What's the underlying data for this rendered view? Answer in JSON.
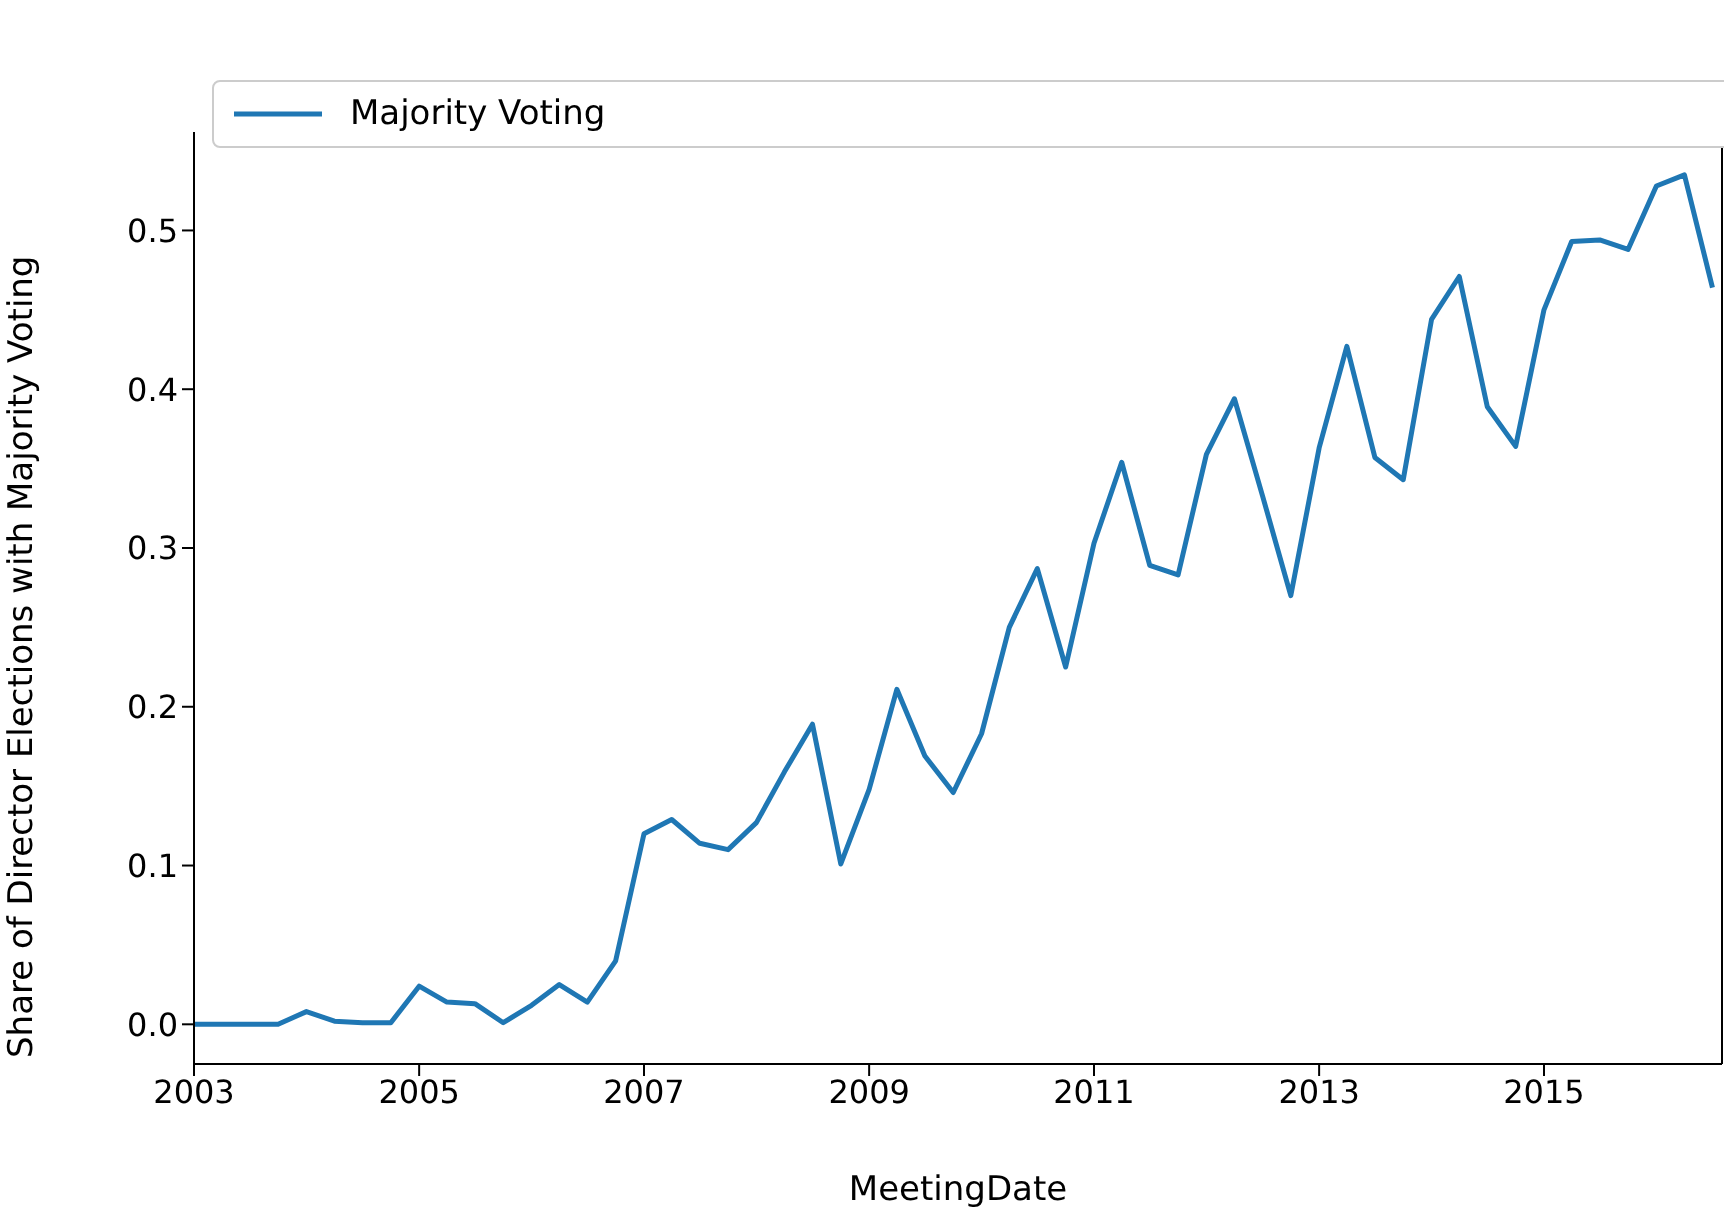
{
  "chart_data": {
    "type": "line",
    "xlabel": "MeetingDate",
    "ylabel": "Share of Director Elections with Majority Voting",
    "x": [
      "2003-01",
      "2003-04",
      "2003-07",
      "2003-10",
      "2004-01",
      "2004-04",
      "2004-07",
      "2004-10",
      "2005-01",
      "2005-04",
      "2005-07",
      "2005-10",
      "2006-01",
      "2006-04",
      "2006-07",
      "2006-10",
      "2007-01",
      "2007-04",
      "2007-07",
      "2007-10",
      "2008-01",
      "2008-04",
      "2008-07",
      "2008-10",
      "2009-01",
      "2009-04",
      "2009-07",
      "2009-10",
      "2010-01",
      "2010-04",
      "2010-07",
      "2010-10",
      "2011-01",
      "2011-04",
      "2011-07",
      "2011-10",
      "2012-01",
      "2012-04",
      "2012-07",
      "2012-10",
      "2013-01",
      "2013-04",
      "2013-07",
      "2013-10",
      "2014-01",
      "2014-04",
      "2014-07",
      "2014-10",
      "2015-01",
      "2015-04",
      "2015-07",
      "2015-10",
      "2016-01",
      "2016-04",
      "2016-07"
    ],
    "series": [
      {
        "name": "Majority Voting",
        "color": "#1f77b4",
        "values": [
          0,
          0,
          0,
          0,
          0.008,
          0.002,
          0.001,
          0.001,
          0.024,
          0.014,
          0.013,
          0.001,
          0.012,
          0.025,
          0.014,
          0.04,
          0.12,
          0.129,
          0.114,
          0.11,
          0.127,
          0.159,
          0.189,
          0.101,
          0.148,
          0.211,
          0.169,
          0.146,
          0.183,
          0.25,
          0.287,
          0.225,
          0.303,
          0.354,
          0.289,
          0.283,
          0.359,
          0.394,
          0.333,
          0.27,
          0.363,
          0.427,
          0.357,
          0.343,
          0.444,
          0.471,
          0.389,
          0.364,
          0.45,
          0.493,
          0.494,
          0.488,
          0.528,
          0.535,
          0.464
        ]
      }
    ],
    "xlim": [
      "2003-01",
      "2016-08"
    ],
    "xticks": [
      "2003",
      "2005",
      "2007",
      "2009",
      "2011",
      "2013",
      "2015"
    ],
    "ylim": [
      -0.025,
      0.562
    ],
    "yticks": [
      {
        "value": 0,
        "label": "0.0"
      },
      {
        "value": 0.1,
        "label": "0.1"
      },
      {
        "value": 0.2,
        "label": "0.2"
      },
      {
        "value": 0.3,
        "label": "0.3"
      },
      {
        "value": 0.4,
        "label": "0.4"
      },
      {
        "value": 0.5,
        "label": "0.5"
      }
    ],
    "legend": "top left",
    "grid": false,
    "marker": "none",
    "line_style": "solid"
  }
}
